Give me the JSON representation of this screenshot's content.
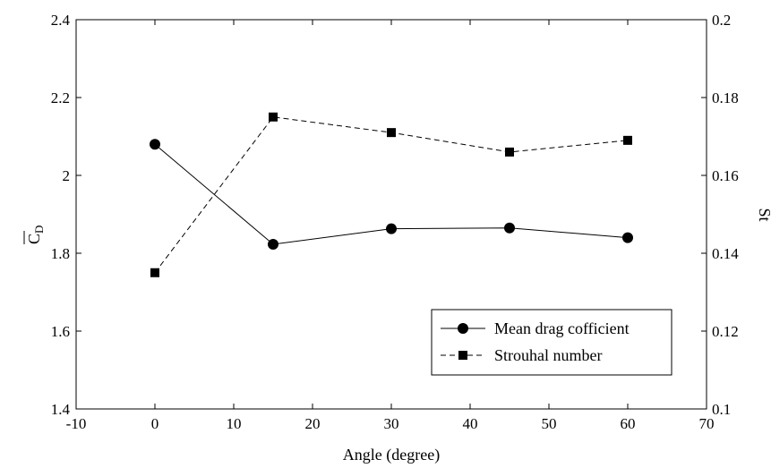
{
  "chart_data": {
    "type": "line",
    "x": [
      0,
      15,
      30,
      45,
      60
    ],
    "xlabel": "Angle (degree)",
    "xlim": [
      -10,
      70
    ],
    "xticks": [
      -10,
      0,
      10,
      20,
      30,
      40,
      50,
      60,
      70
    ],
    "xtick_labels": [
      "-10",
      "0",
      "10",
      "20",
      "30",
      "40",
      "50",
      "60",
      "70"
    ],
    "ylabel_left": "C",
    "ylabel_left_subscript": "D",
    "ylim_left": [
      1.4,
      2.4
    ],
    "yticks_left": [
      1.4,
      1.6,
      1.8,
      2.0,
      2.2,
      2.4
    ],
    "ytick_labels_left": [
      "1.4",
      "1.6",
      "1.8",
      "2",
      "2.2",
      "2.4"
    ],
    "ylabel_right": "St",
    "ylim_right": [
      0.1,
      0.2
    ],
    "yticks_right": [
      0.1,
      0.12,
      0.14,
      0.16,
      0.18,
      0.2
    ],
    "ytick_labels_right": [
      "0.1",
      "0.12",
      "0.14",
      "0.16",
      "0.18",
      "0.2"
    ],
    "grid": false,
    "legend_position": "bottom-right",
    "series": [
      {
        "name": "Mean drag cofficient",
        "axis": "left",
        "marker": "circle",
        "line_style": "solid",
        "color": "#000000",
        "values": [
          2.08,
          1.823,
          1.863,
          1.865,
          1.84
        ]
      },
      {
        "name": "Strouhal number",
        "axis": "right",
        "marker": "square",
        "line_style": "dashed",
        "color": "#000000",
        "values": [
          0.135,
          0.175,
          0.171,
          0.166,
          0.169
        ]
      }
    ]
  }
}
